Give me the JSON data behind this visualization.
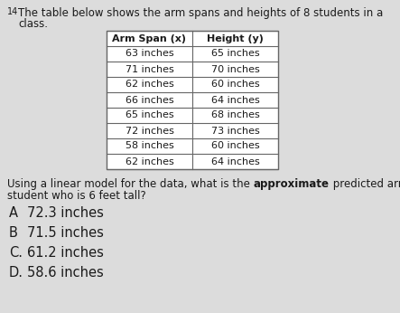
{
  "question_number": "14",
  "intro_line1": "The table below shows the arm spans and heights of 8 students in a",
  "intro_line2": "class.",
  "col1_header": "Arm Span (x)",
  "col2_header": "Height (y)",
  "table_data": [
    [
      "63 inches",
      "65 inches"
    ],
    [
      "71 inches",
      "70 inches"
    ],
    [
      "62 inches",
      "60 inches"
    ],
    [
      "66 inches",
      "64 inches"
    ],
    [
      "65 inches",
      "68 inches"
    ],
    [
      "72 inches",
      "73 inches"
    ],
    [
      "58 inches",
      "60 inches"
    ],
    [
      "62 inches",
      "64 inches"
    ]
  ],
  "q_part1": "Using a linear model for the data, what is the ",
  "q_bold": "approximate",
  "q_part2": " predicted arm span of a",
  "q_line2": "student who is 6 feet tall?",
  "choices": [
    {
      "letter": "A",
      "text": "72.3 inches"
    },
    {
      "letter": "B",
      "text": "71.5 inches"
    },
    {
      "letter": "C.",
      "text": "61.2 inches"
    },
    {
      "letter": "D.",
      "text": "58.6 inches"
    }
  ],
  "bg_color": "#dcdcdc",
  "table_bg": "#ffffff",
  "text_color": "#1a1a1a",
  "font_size_intro": 8.5,
  "font_size_table": 8.0,
  "font_size_question": 8.5,
  "font_size_choices": 10.5
}
